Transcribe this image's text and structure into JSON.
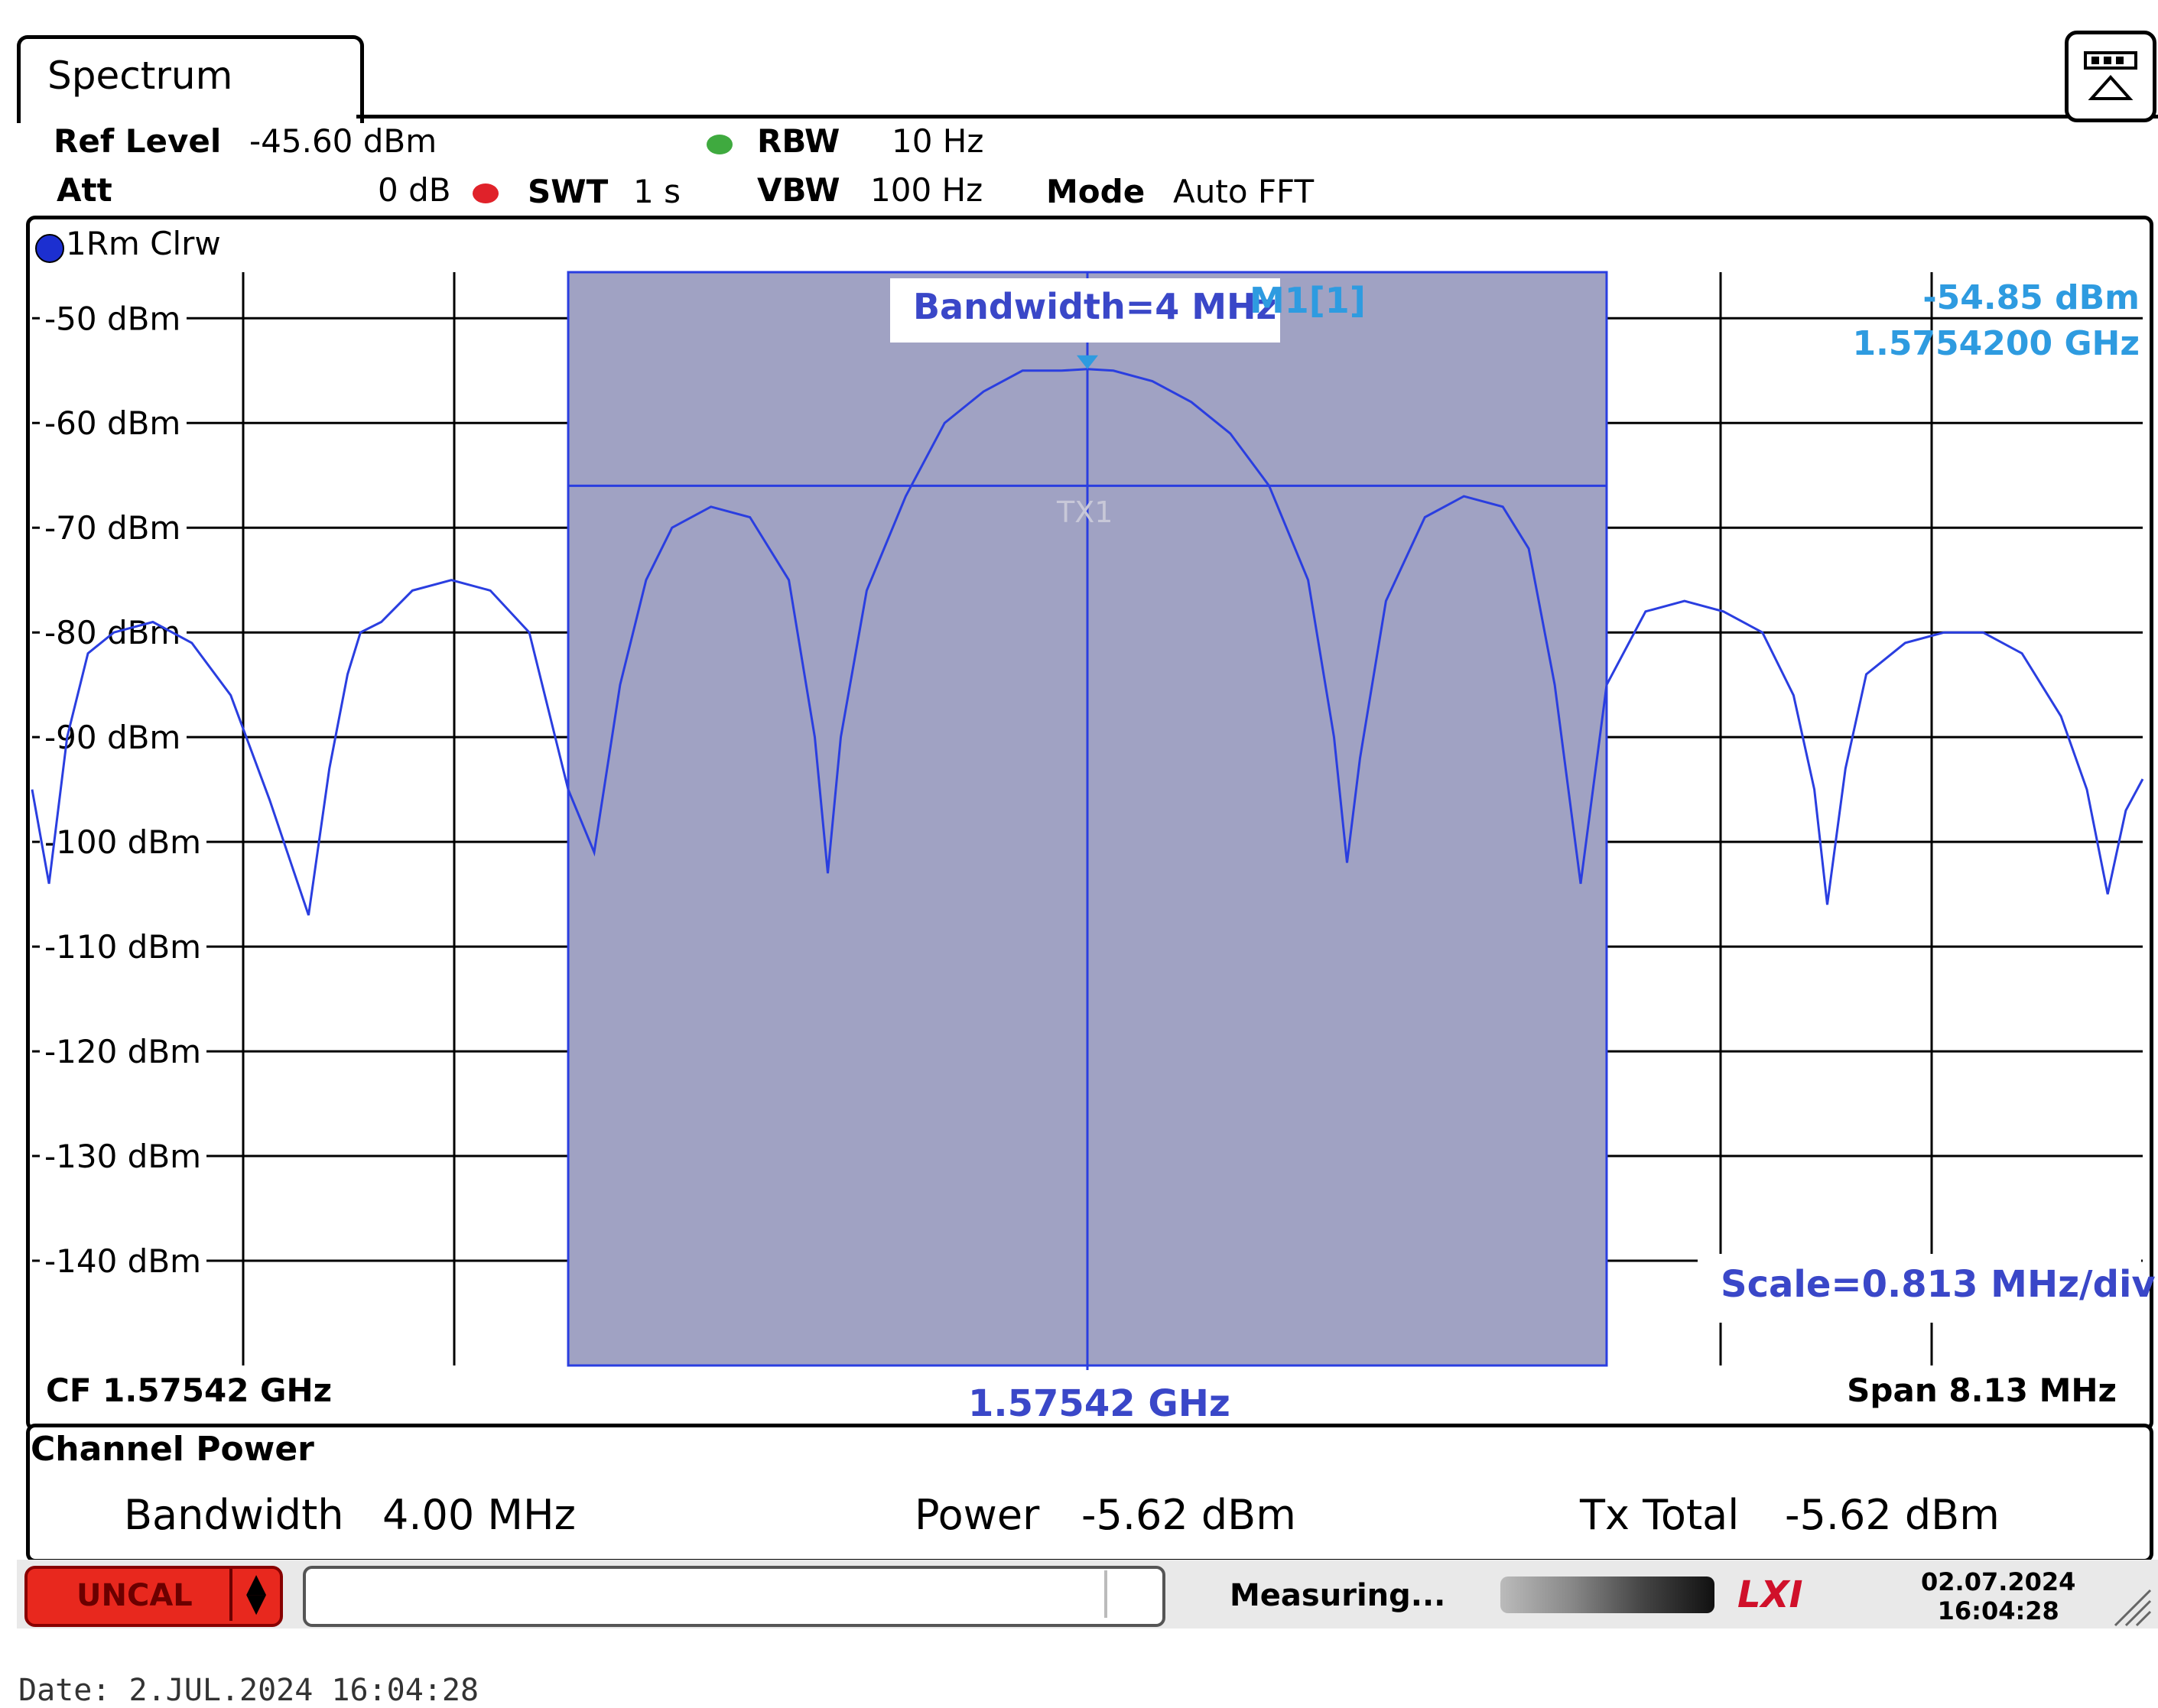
{
  "tab": {
    "title": "Spectrum"
  },
  "header": {
    "ref_level_label": "Ref Level",
    "ref_level_value": "-45.60 dBm",
    "att_label": "Att",
    "att_value": "0 dB",
    "swt_label": "SWT",
    "swt_value": "1 s",
    "rbw_label": "RBW",
    "rbw_value": "10 Hz",
    "vbw_label": "VBW",
    "vbw_value": "100 Hz",
    "mode_label": "Mode",
    "mode_value": "Auto FFT"
  },
  "trace": {
    "label": "1Rm Clrw",
    "color": "#2a3ee0"
  },
  "marker": {
    "label": "M1[1]",
    "level": "-54.85 dBm",
    "freq": "1.5754200 GHz",
    "color": "#2e9be0"
  },
  "annotations": {
    "bandwidth_box": "Bandwidth=4 MHz",
    "scale_box": "Scale=0.813 MHz/div",
    "center_freq_box": "1.57542 GHz",
    "channel_label": "TX1",
    "annotation_color": "#3a47c8"
  },
  "axis": {
    "cf_label": "CF 1.57542 GHz",
    "span_label": "Span 8.13 MHz"
  },
  "chart_data": {
    "type": "line",
    "y_unit": "dBm",
    "ylim": [
      -150,
      -45.6
    ],
    "y_ticks": [
      "-50 dBm",
      "-60 dBm",
      "-70 dBm",
      "-80 dBm",
      "-90 dBm",
      "-100 dBm",
      "-110 dBm",
      "-120 dBm",
      "-130 dBm",
      "-140 dBm"
    ],
    "y_tick_values": [
      -50,
      -60,
      -70,
      -80,
      -90,
      -100,
      -110,
      -120,
      -130,
      -140
    ],
    "x_unit": "MHz offset from CF",
    "xlim": [
      -4.065,
      4.065
    ],
    "grid": true,
    "channel": {
      "center": 0,
      "bandwidth": 4.0,
      "level": -66.0,
      "fill": "#a0a2c3"
    },
    "series": [
      {
        "color": "#2a3ee0",
        "x": [
          -4.065,
          -4.0,
          -3.93,
          -3.85,
          -3.75,
          -3.6,
          -3.45,
          -3.3,
          -3.15,
          -3.0,
          -2.92,
          -2.85,
          -2.8,
          -2.72,
          -2.6,
          -2.45,
          -2.3,
          -2.15,
          -2.0,
          -1.9,
          -1.8,
          -1.7,
          -1.6,
          -1.45,
          -1.3,
          -1.15,
          -1.05,
          -1.0,
          -0.95,
          -0.85,
          -0.7,
          -0.55,
          -0.4,
          -0.25,
          -0.1,
          0.0,
          0.1,
          0.25,
          0.4,
          0.55,
          0.7,
          0.85,
          0.95,
          1.0,
          1.05,
          1.15,
          1.3,
          1.45,
          1.6,
          1.7,
          1.8,
          1.9,
          2.0,
          2.15,
          2.3,
          2.45,
          2.6,
          2.72,
          2.8,
          2.85,
          2.92,
          3.0,
          3.15,
          3.3,
          3.45,
          3.6,
          3.75,
          3.85,
          3.93,
          4.0,
          4.065
        ],
        "y": [
          -95,
          -104,
          -90,
          -82,
          -80,
          -79,
          -81,
          -86,
          -96,
          -107,
          -93,
          -84,
          -80,
          -79,
          -76,
          -75,
          -76,
          -80,
          -95,
          -101,
          -85,
          -75,
          -70,
          -68,
          -69,
          -75,
          -90,
          -103,
          -90,
          -76,
          -67,
          -60,
          -57,
          -55,
          -55,
          -54.85,
          -55,
          -56,
          -58,
          -61,
          -66,
          -75,
          -90,
          -102,
          -92,
          -77,
          -69,
          -67,
          -68,
          -72,
          -85,
          -104,
          -85,
          -78,
          -77,
          -78,
          -80,
          -86,
          -95,
          -106,
          -93,
          -84,
          -81,
          -80,
          -80,
          -82,
          -88,
          -95,
          -105,
          -97,
          -94
        ]
      }
    ],
    "marker": {
      "x": 0.0,
      "y": -54.85
    }
  },
  "channel_power": {
    "title": "Channel Power",
    "bandwidth_label": "Bandwidth",
    "bandwidth_value": "4.00 MHz",
    "power_label": "Power",
    "power_value": "-5.62 dBm",
    "tx_total_label": "Tx Total",
    "tx_total_value": "-5.62 dBm"
  },
  "status": {
    "uncal": "UNCAL",
    "measuring": "Measuring...",
    "lxi": "LXI",
    "date": "02.07.2024",
    "time": "16:04:28"
  },
  "footer": {
    "date_label": "Date: 2.JUL.2024  16:04:28"
  }
}
